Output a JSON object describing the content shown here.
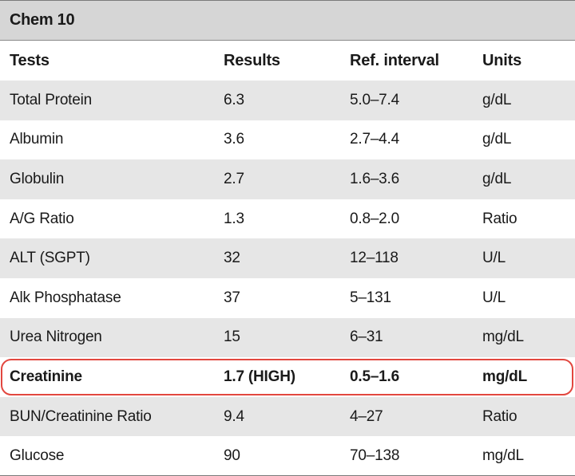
{
  "table": {
    "title": "Chem 10",
    "headers": [
      "Tests",
      "Results",
      "Ref. interval",
      "Units"
    ],
    "rows": [
      [
        "Total Protein",
        "6.3",
        "5.0–7.4",
        "g/dL"
      ],
      [
        "Albumin",
        "3.6",
        "2.7–4.4",
        "g/dL"
      ],
      [
        "Globulin",
        "2.7",
        "1.6–3.6",
        "g/dL"
      ],
      [
        "A/G Ratio",
        "1.3",
        "0.8–2.0",
        "Ratio"
      ],
      [
        "ALT (SGPT)",
        "32",
        "12–118",
        "U/L"
      ],
      [
        "Alk Phosphatase",
        "37",
        "5–131",
        "U/L"
      ],
      [
        "Urea Nitrogen",
        "15",
        "6–31",
        "mg/dL"
      ],
      [
        "Creatinine",
        "1.7 (HIGH)",
        "0.5–1.6",
        "mg/dL"
      ],
      [
        "BUN/Creatinine Ratio",
        "9.4",
        "4–27",
        "Ratio"
      ],
      [
        "Glucose",
        "90",
        "70–138",
        "mg/dL"
      ]
    ]
  },
  "colors": {
    "title_bg": "#d6d6d6",
    "row_shade": "#e6e6e6",
    "highlight_border": "#e2473f"
  }
}
